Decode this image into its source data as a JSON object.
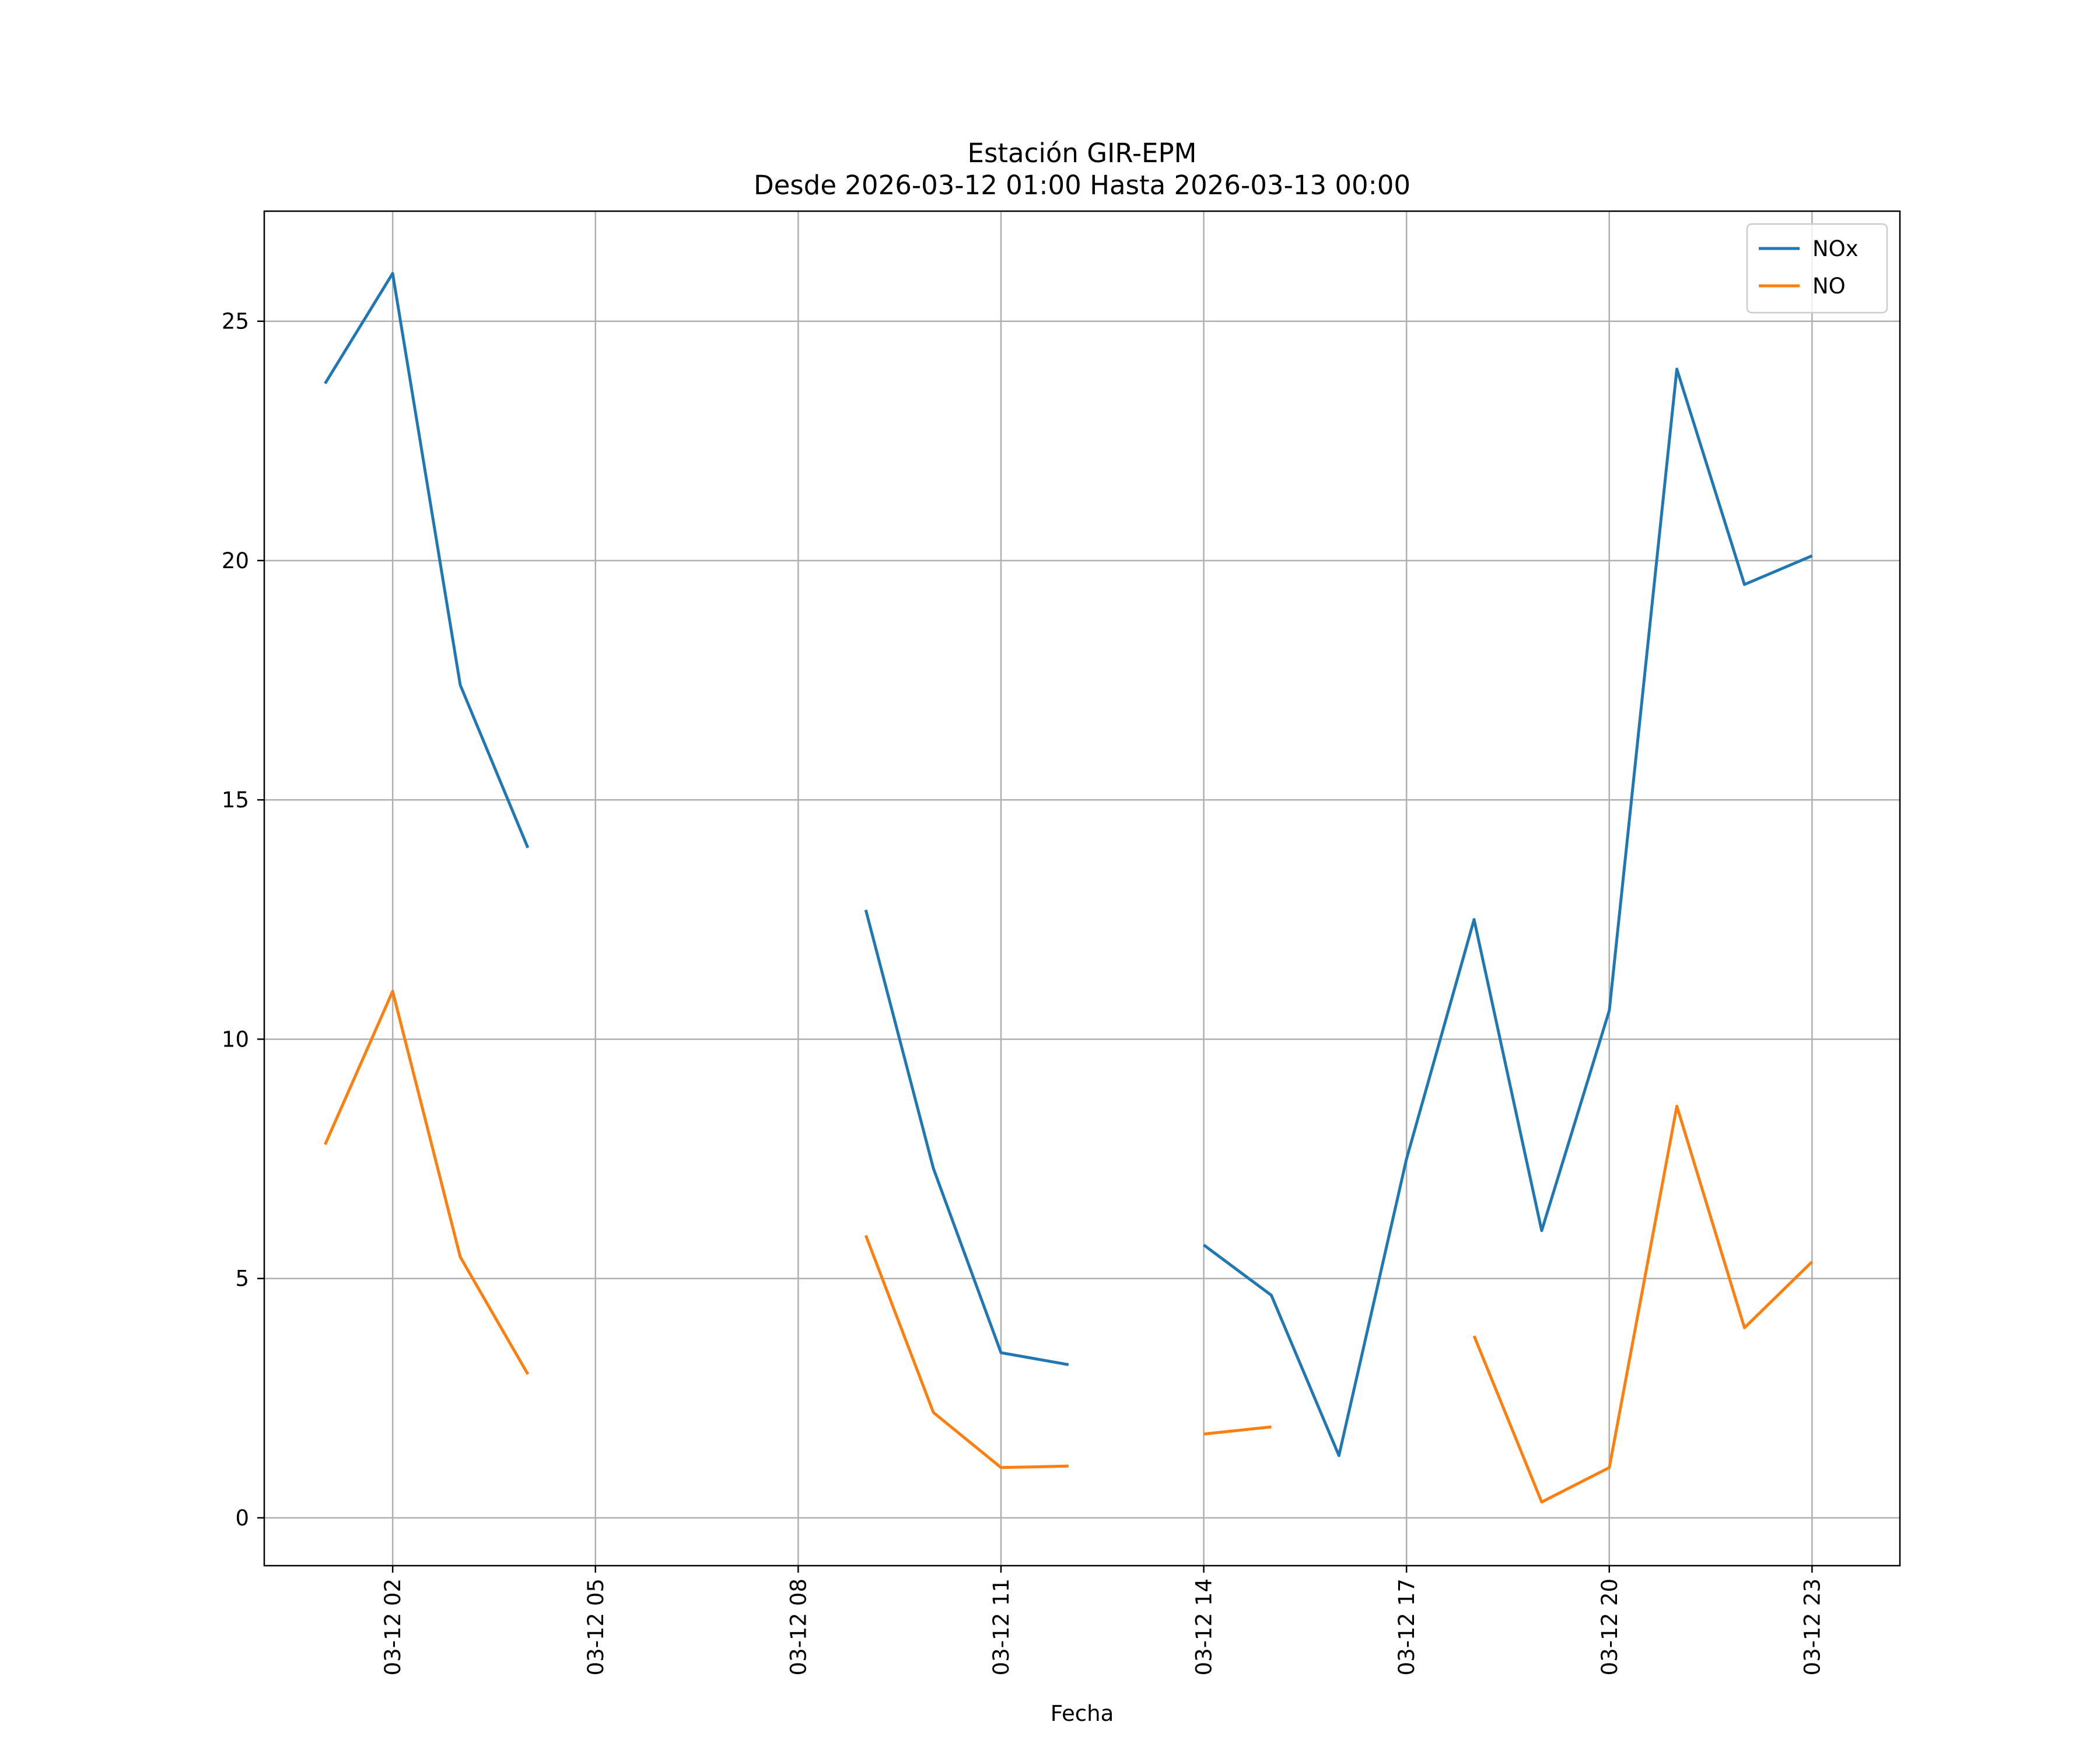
{
  "chart_data": {
    "type": "line",
    "title": "Estación GIR-EPM",
    "subtitle": "Desde 2026-03-12 01:00 Hasta 2026-03-13 00:00",
    "xlabel": "Fecha",
    "ylabel": "",
    "x_hours": [
      1,
      2,
      3,
      4,
      5,
      6,
      7,
      8,
      9,
      10,
      11,
      12,
      13,
      14,
      15,
      16,
      17,
      18,
      19,
      20,
      21,
      22,
      23
    ],
    "xlim_hours": [
      0.1,
      24.3
    ],
    "ylim": [
      -1,
      27.3
    ],
    "x_ticks": [
      {
        "hour": 2,
        "label": "03-12 02"
      },
      {
        "hour": 5,
        "label": "03-12 05"
      },
      {
        "hour": 8,
        "label": "03-12 08"
      },
      {
        "hour": 11,
        "label": "03-12 11"
      },
      {
        "hour": 14,
        "label": "03-12 14"
      },
      {
        "hour": 17,
        "label": "03-12 17"
      },
      {
        "hour": 20,
        "label": "03-12 20"
      },
      {
        "hour": 23,
        "label": "03-12 23"
      }
    ],
    "y_ticks": [
      0,
      5,
      10,
      15,
      20,
      25
    ],
    "grid": true,
    "legend_position": "top-right",
    "series": [
      {
        "name": "NOx",
        "color": "#1f77b4",
        "values": [
          23.7,
          26.0,
          17.4,
          14.0,
          null,
          null,
          null,
          null,
          12.7,
          7.3,
          3.45,
          3.2,
          null,
          5.7,
          4.65,
          1.3,
          7.5,
          12.5,
          6.0,
          10.6,
          24.0,
          19.5,
          20.1
        ]
      },
      {
        "name": "NO",
        "color": "#ff7f0e",
        "values": [
          7.8,
          11.0,
          5.45,
          3.0,
          null,
          null,
          null,
          null,
          5.9,
          2.2,
          1.05,
          1.08,
          null,
          1.75,
          1.9,
          null,
          null,
          3.8,
          0.33,
          1.05,
          8.6,
          3.97,
          5.35
        ]
      }
    ]
  }
}
